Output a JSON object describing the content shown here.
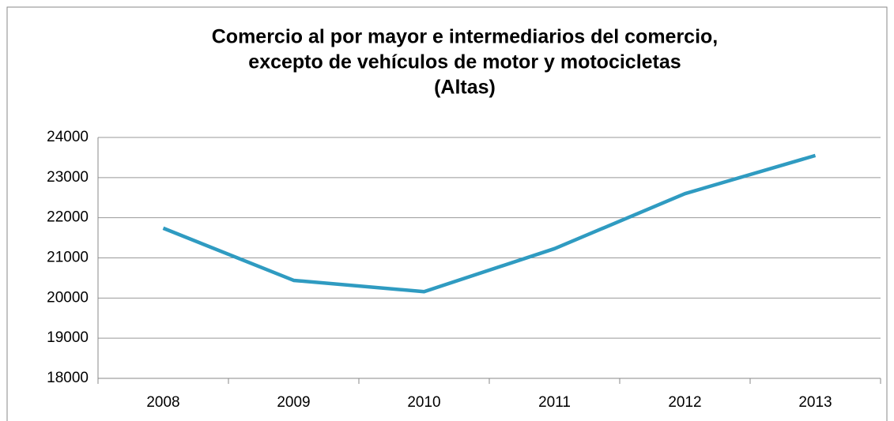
{
  "chart_data": {
    "type": "line",
    "title": [
      "Comercio al por mayor e intermediarios del comercio,",
      "excepto de vehículos de motor y motocicletas",
      "(Altas)"
    ],
    "categories": [
      "2008",
      "2009",
      "2010",
      "2011",
      "2012",
      "2013"
    ],
    "series": [
      {
        "name": "Altas",
        "color": "#2f9bc1",
        "values": [
          21740,
          20440,
          20160,
          21230,
          22600,
          23550
        ]
      }
    ],
    "ylim": [
      18000,
      24000
    ],
    "yticks": [
      18000,
      19000,
      20000,
      21000,
      22000,
      23000,
      24000
    ],
    "grid": true
  }
}
